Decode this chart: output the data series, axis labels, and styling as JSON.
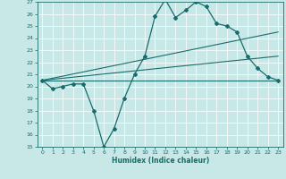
{
  "title": "",
  "xlabel": "Humidex (Indice chaleur)",
  "xlim": [
    -0.5,
    23.5
  ],
  "ylim": [
    15,
    27
  ],
  "yticks": [
    15,
    16,
    17,
    18,
    19,
    20,
    21,
    22,
    23,
    24,
    25,
    26,
    27
  ],
  "xticks": [
    0,
    1,
    2,
    3,
    4,
    5,
    6,
    7,
    8,
    9,
    10,
    11,
    12,
    13,
    14,
    15,
    16,
    17,
    18,
    19,
    20,
    21,
    22,
    23
  ],
  "bg_color": "#c8e8e8",
  "line_color": "#1a6b6b",
  "grid_color": "#ffffff",
  "series_main": {
    "x": [
      0,
      1,
      2,
      3,
      4,
      5,
      6,
      7,
      8,
      9,
      10,
      11,
      12,
      13,
      14,
      15,
      16,
      17,
      18,
      19,
      20,
      21,
      22,
      23
    ],
    "y": [
      20.5,
      19.8,
      20.0,
      20.2,
      20.2,
      18.0,
      15.0,
      16.5,
      19.0,
      21.0,
      22.5,
      25.8,
      27.2,
      25.7,
      26.3,
      27.0,
      26.6,
      25.2,
      25.0,
      24.5,
      22.5,
      21.5,
      20.8,
      20.5
    ]
  },
  "series_lines": [
    {
      "x0": 0,
      "y0": 20.5,
      "x1": 23,
      "y1": 20.5
    },
    {
      "x0": 0,
      "y0": 20.5,
      "x1": 23,
      "y1": 22.5
    },
    {
      "x0": 0,
      "y0": 20.5,
      "x1": 23,
      "y1": 24.5
    }
  ]
}
